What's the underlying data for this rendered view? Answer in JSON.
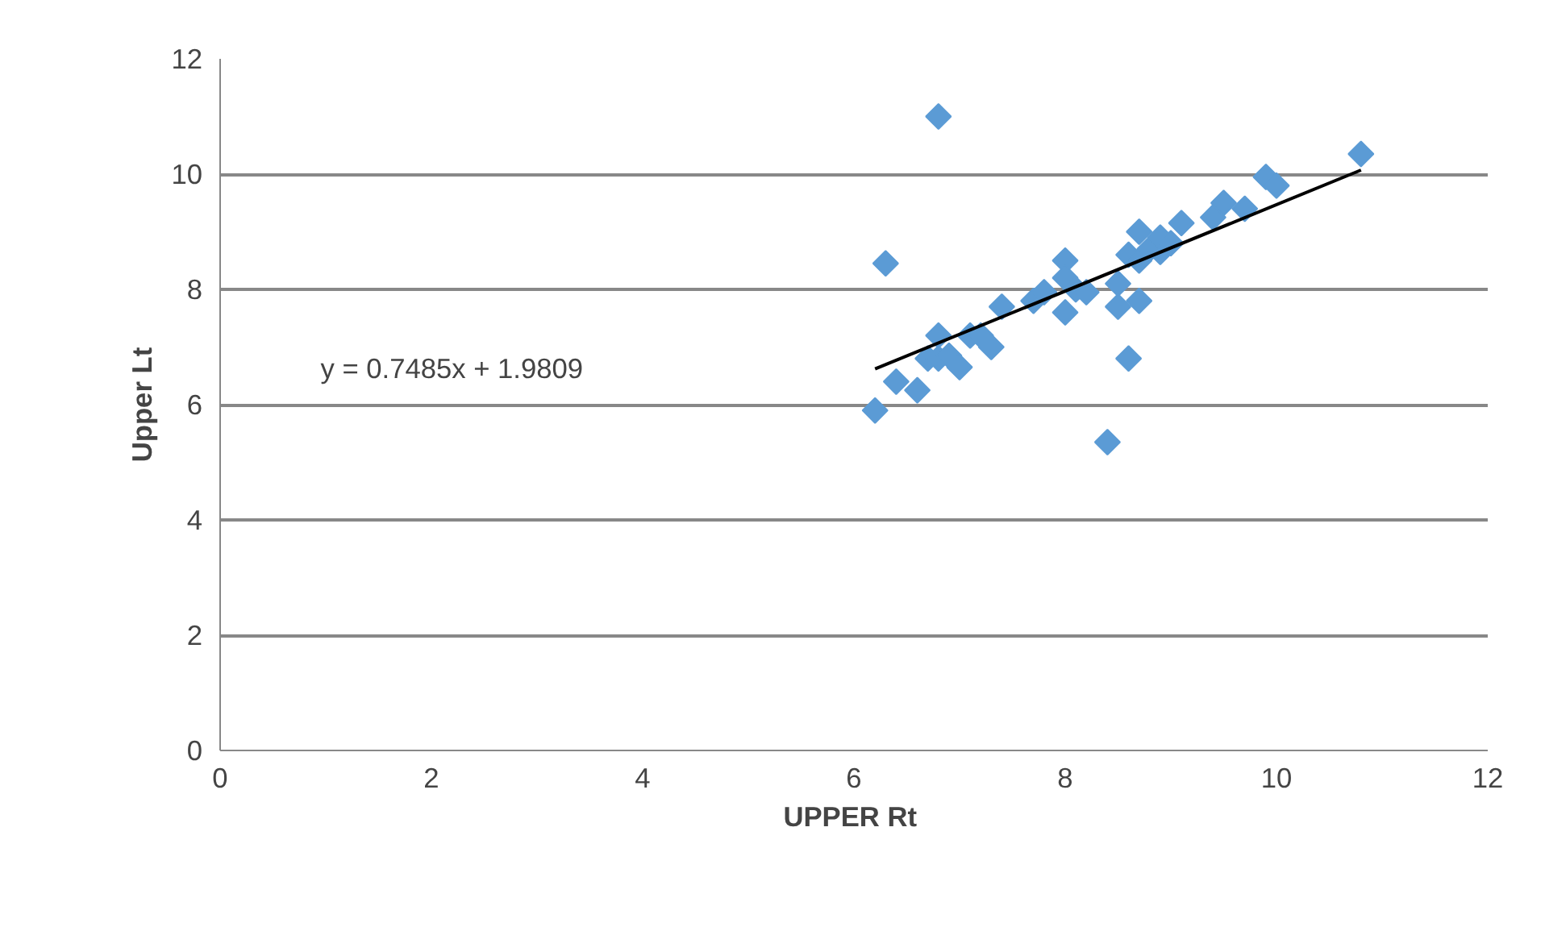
{
  "chart_data": {
    "type": "scatter",
    "xlabel": "UPPER  Rt",
    "ylabel": "Upper Lt",
    "xlim": [
      0,
      12
    ],
    "ylim": [
      0,
      12
    ],
    "xticks": [
      0,
      2,
      4,
      6,
      8,
      10,
      12
    ],
    "yticks": [
      0,
      2,
      4,
      6,
      8,
      10,
      12
    ],
    "grid": "y",
    "marker": "diamond",
    "annotations": [
      "y = 0.7485x + 1.9809"
    ],
    "series": [
      {
        "color": "#5b9bd5",
        "x": [
          6.2,
          6.3,
          6.4,
          6.6,
          6.7,
          6.8,
          6.8,
          6.8,
          6.9,
          7.0,
          7.1,
          7.2,
          7.3,
          7.4,
          7.7,
          7.8,
          8.0,
          8.0,
          8.0,
          8.1,
          8.2,
          8.4,
          8.5,
          8.5,
          8.6,
          8.6,
          8.7,
          8.7,
          8.7,
          8.8,
          8.9,
          8.9,
          9.0,
          9.1,
          9.4,
          9.5,
          9.7,
          9.9,
          10.0,
          10.8
        ],
        "values": [
          5.9,
          8.45,
          6.4,
          6.25,
          6.8,
          11.0,
          7.2,
          6.8,
          6.85,
          6.65,
          7.2,
          7.2,
          7.0,
          7.7,
          7.8,
          7.95,
          8.5,
          7.6,
          8.2,
          8.0,
          7.95,
          5.35,
          8.1,
          7.7,
          6.8,
          8.6,
          9.0,
          8.5,
          7.8,
          8.7,
          8.65,
          8.9,
          8.8,
          9.15,
          9.25,
          9.5,
          9.4,
          9.95,
          9.8,
          10.35
        ]
      },
      {
        "type": "line",
        "color": "#000000",
        "x": [
          6.2,
          10.8
        ],
        "values": [
          6.62,
          10.07
        ],
        "marker": "none"
      }
    ]
  }
}
